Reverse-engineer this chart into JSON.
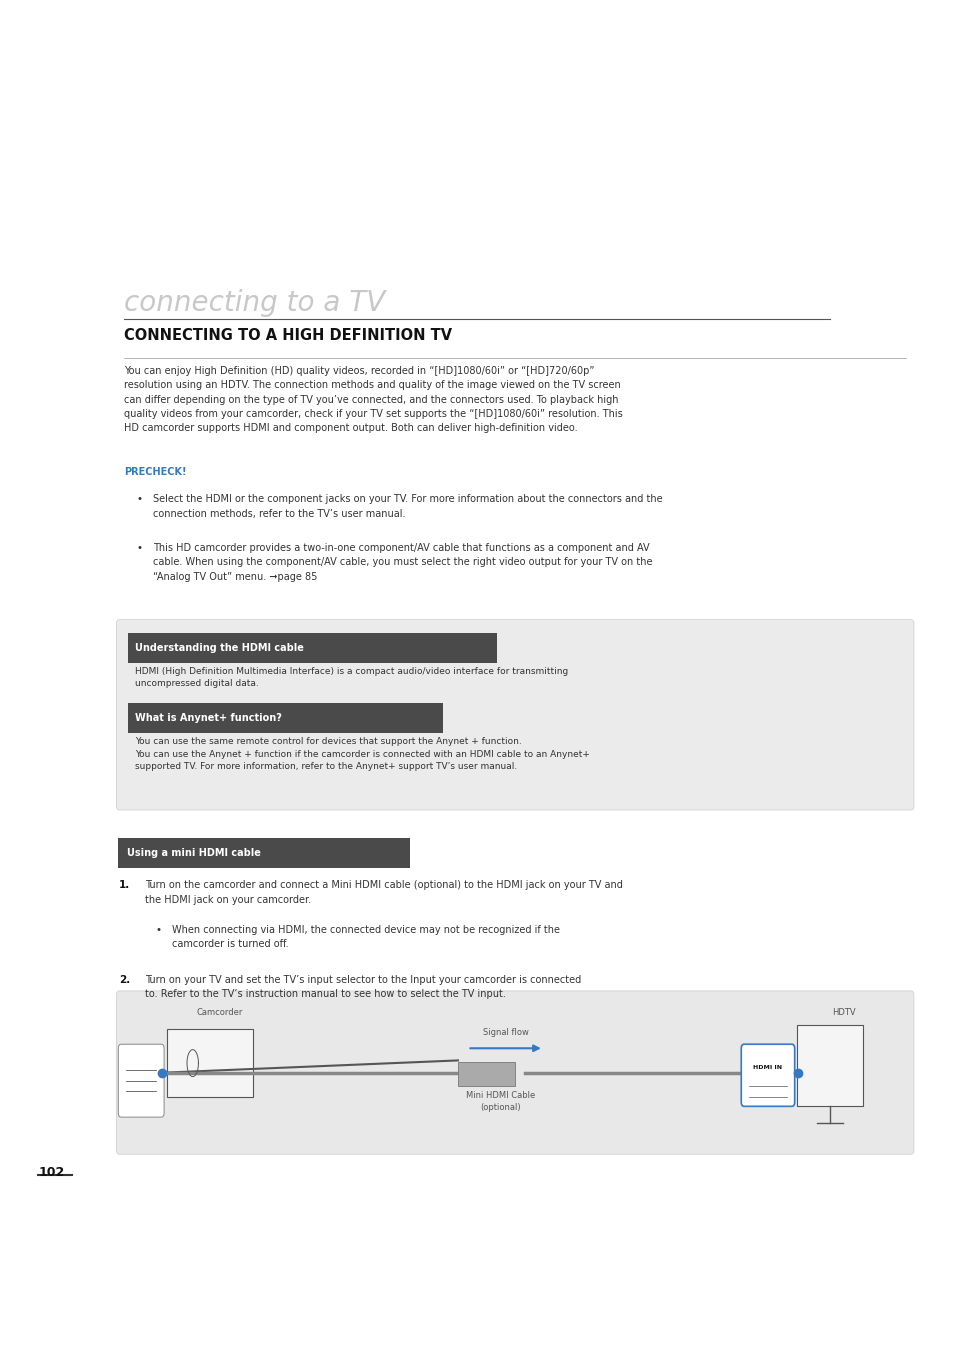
{
  "bg_color": "#ffffff",
  "L": 0.13,
  "R": 0.95,
  "title_large": "connecting to a TV",
  "title_large_color": "#c0c0c0",
  "title_large_size": 22,
  "section_title": "CONNECTING TO A HIGH DEFINITION TV",
  "section_title_size": 11,
  "section_title_color": "#111111",
  "body_text_color": "#333333",
  "body_font_size": 7.0,
  "precheck_color": "#3579c0",
  "box_bg": "#ebebeb",
  "box_title_bg": "#4a4a4a",
  "hdmi_cable_title": "Understanding the HDMI cable",
  "anynet_title": "What is Anynet+ function?",
  "mini_hdmi_title": "Using a mini HDMI cable",
  "mini_hdmi_bg": "#4a4a4a",
  "diagram_bg": "#e8e8e8",
  "page_number": "102",
  "blue_color": "#3579c0"
}
